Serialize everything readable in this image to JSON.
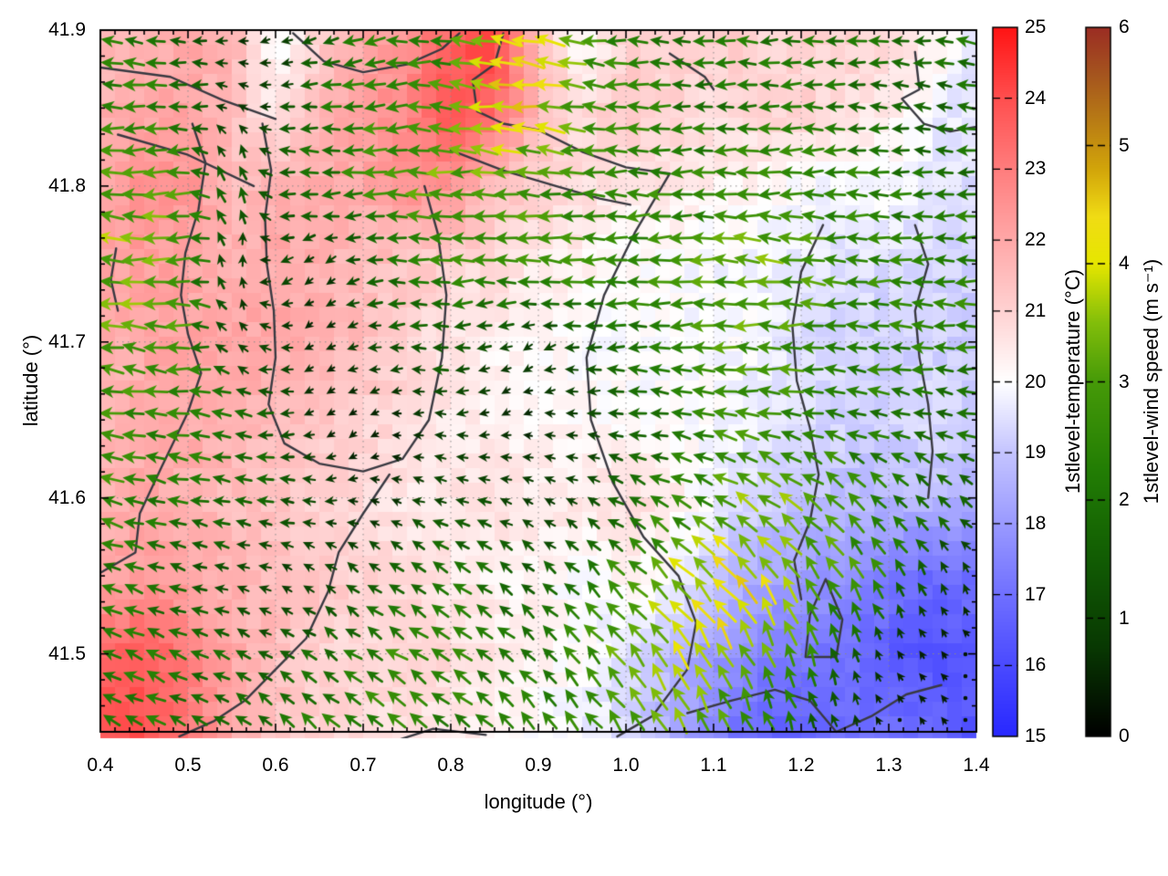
{
  "chart_data": {
    "type": "heatmap",
    "overlays": [
      "quiver",
      "contour"
    ],
    "xlabel": "longitude (°)",
    "ylabel": "latitude (°)",
    "xlim": [
      0.4,
      1.4
    ],
    "ylim": [
      41.45,
      41.9
    ],
    "x_tick_values": [
      0.4,
      0.5,
      0.6,
      0.7,
      0.8,
      0.9,
      1.0,
      1.1,
      1.2,
      1.3,
      1.4
    ],
    "x_tick_labels": [
      "0.4",
      "0.5",
      "0.6",
      "0.7",
      "0.8",
      "0.9",
      "1.0",
      "1.1",
      "1.2",
      "1.3",
      "1.4"
    ],
    "y_tick_values": [
      41.5,
      41.6,
      41.7,
      41.8,
      41.9
    ],
    "y_tick_labels": [
      "41.5",
      "41.6",
      "41.7",
      "41.8",
      "41.9"
    ],
    "minor_ticks_per_major": 6,
    "grid": "dotted-at-major-ticks",
    "field_grid": {
      "lon_start": 0.4,
      "lon_step": 0.05,
      "ncols": 21,
      "lat_start": 41.9,
      "lat_step": -0.05,
      "nrows": 10
    },
    "temperature_c": [
      [
        21.5,
        21.5,
        22.0,
        21.8,
        19.8,
        21.0,
        22.0,
        22.5,
        23.5,
        24.5,
        21.5,
        19.8,
        21.0,
        21.0,
        21.2,
        21.0,
        21.0,
        21.0,
        21.0,
        20.5,
        19.5
      ],
      [
        21.8,
        22.0,
        22.0,
        21.5,
        20.5,
        21.5,
        22.3,
        22.8,
        24.0,
        23.5,
        21.5,
        20.8,
        21.3,
        21.0,
        20.8,
        21.0,
        21.0,
        20.8,
        20.5,
        19.8,
        19.5
      ],
      [
        22.0,
        22.5,
        22.5,
        21.5,
        21.8,
        22.0,
        22.0,
        22.5,
        22.5,
        21.5,
        21.0,
        20.8,
        20.5,
        20.5,
        20.3,
        20.2,
        20.0,
        19.8,
        20.0,
        19.6,
        19.4
      ],
      [
        22.0,
        22.3,
        22.0,
        21.8,
        22.0,
        21.8,
        21.5,
        21.3,
        21.0,
        20.8,
        20.5,
        20.3,
        20.0,
        20.0,
        19.9,
        19.8,
        19.6,
        19.5,
        19.4,
        19.3,
        19.2
      ],
      [
        21.8,
        22.0,
        22.2,
        22.0,
        22.0,
        21.8,
        21.5,
        21.0,
        20.5,
        20.3,
        20.2,
        20.0,
        20.0,
        19.9,
        20.0,
        19.8,
        19.5,
        19.3,
        19.2,
        19.3,
        19.0
      ],
      [
        21.5,
        21.8,
        22.0,
        21.8,
        21.5,
        21.3,
        21.0,
        20.8,
        20.5,
        20.3,
        20.2,
        20.1,
        20.0,
        20.0,
        19.9,
        19.7,
        19.5,
        19.3,
        19.2,
        19.4,
        19.2
      ],
      [
        21.8,
        22.0,
        21.8,
        21.5,
        21.3,
        21.0,
        20.8,
        20.5,
        20.5,
        20.8,
        20.5,
        20.5,
        20.8,
        20.5,
        19.8,
        19.3,
        19.0,
        18.8,
        18.7,
        18.8,
        18.5
      ],
      [
        22.0,
        22.3,
        22.0,
        21.8,
        21.5,
        21.3,
        21.0,
        20.8,
        20.5,
        20.3,
        20.2,
        20.0,
        20.2,
        20.0,
        19.0,
        18.3,
        18.0,
        17.8,
        17.2,
        16.8,
        17.0
      ],
      [
        23.5,
        23.8,
        23.0,
        22.0,
        21.5,
        21.0,
        20.8,
        21.0,
        20.8,
        20.5,
        20.3,
        20.0,
        19.5,
        18.8,
        18.0,
        17.5,
        17.2,
        17.0,
        16.5,
        16.2,
        16.5
      ],
      [
        24.0,
        24.0,
        23.2,
        22.0,
        21.3,
        21.0,
        20.8,
        20.5,
        20.5,
        20.3,
        20.0,
        19.8,
        19.3,
        18.5,
        17.5,
        16.8,
        16.5,
        17.0,
        17.0,
        16.8,
        16.2
      ]
    ],
    "wind_u_ms": [
      [
        -2.2,
        -2.0,
        -1.5,
        -0.8,
        -0.5,
        -1.5,
        -2.0,
        -2.2,
        -2.5,
        -3.8,
        -4.0,
        -3.0,
        -2.2,
        -2.0,
        -2.0,
        -2.2,
        -2.0,
        -2.0,
        -2.0,
        -2.0,
        -2.0
      ],
      [
        -2.5,
        -2.5,
        -2.0,
        -0.5,
        -1.0,
        -2.0,
        -2.5,
        -2.8,
        -3.0,
        -4.2,
        -4.0,
        -2.8,
        -2.5,
        -2.2,
        -2.0,
        -2.0,
        -2.2,
        -2.0,
        -1.8,
        -1.5,
        -1.8
      ],
      [
        -3.0,
        -3.2,
        -3.0,
        0.0,
        -1.5,
        -2.0,
        -2.5,
        -3.0,
        -3.2,
        -3.0,
        -2.8,
        -2.5,
        -2.5,
        -2.5,
        -2.5,
        -2.8,
        -2.5,
        -2.5,
        -2.2,
        -2.0,
        -2.0
      ],
      [
        -3.5,
        -3.3,
        -3.0,
        0.3,
        -1.0,
        -0.5,
        -1.5,
        -2.0,
        -2.5,
        -2.8,
        -3.0,
        -2.8,
        -2.5,
        -2.8,
        -3.0,
        -3.2,
        -3.0,
        -2.8,
        -2.5,
        -2.2,
        -2.5
      ],
      [
        -3.0,
        -3.0,
        -2.8,
        -0.5,
        -1.0,
        -0.3,
        -1.0,
        -1.5,
        -1.8,
        -1.0,
        -0.8,
        -1.5,
        -2.0,
        -2.5,
        -2.8,
        -3.0,
        -2.8,
        -2.5,
        -2.5,
        -2.2,
        -2.5
      ],
      [
        -2.8,
        -2.5,
        -2.5,
        -2.0,
        -1.5,
        -0.5,
        -0.3,
        -0.5,
        -1.0,
        -0.5,
        -0.5,
        -1.0,
        -1.5,
        -2.0,
        -2.5,
        -2.8,
        -2.5,
        -2.2,
        -2.0,
        -1.8,
        -2.0
      ],
      [
        -2.5,
        -2.2,
        -2.0,
        -1.8,
        -1.5,
        -1.0,
        -0.5,
        -0.8,
        -1.2,
        -1.0,
        -0.8,
        -1.0,
        -1.5,
        -2.0,
        -2.5,
        -2.8,
        -2.5,
        -2.0,
        -1.8,
        -1.5,
        -1.5
      ],
      [
        -2.0,
        -1.8,
        -1.5,
        -1.0,
        -0.8,
        -0.8,
        -1.0,
        -1.5,
        -1.8,
        -1.5,
        -1.2,
        -1.5,
        -2.0,
        -2.5,
        -2.8,
        -2.5,
        -2.0,
        -1.5,
        -1.0,
        -0.5,
        -0.3
      ],
      [
        -2.2,
        -2.0,
        -1.8,
        -1.5,
        -1.2,
        -1.5,
        -1.8,
        -2.2,
        -2.0,
        -1.8,
        -1.5,
        -1.8,
        -2.0,
        -2.2,
        -2.0,
        -1.5,
        -1.0,
        -0.5,
        -0.3,
        -0.2,
        -0.2
      ],
      [
        -2.0,
        -2.0,
        -1.8,
        -1.5,
        -1.5,
        -1.8,
        -2.0,
        -2.0,
        -1.8,
        -1.5,
        -1.5,
        -1.8,
        -1.8,
        -1.5,
        -1.2,
        -0.8,
        -0.5,
        -0.3,
        -0.2,
        -0.2,
        -0.2
      ]
    ],
    "wind_v_ms": [
      [
        0,
        0.3,
        0,
        0,
        -0.3,
        -0.5,
        -0.5,
        0,
        0,
        0.5,
        0.8,
        0.5,
        0,
        0,
        0,
        0,
        0,
        0,
        0,
        0.3,
        0.5
      ],
      [
        0,
        0,
        0,
        0.5,
        0,
        0,
        -0.3,
        0,
        0.5,
        0.5,
        0.5,
        0.3,
        0,
        0,
        0,
        0,
        0,
        0,
        0,
        0.3,
        0.5
      ],
      [
        0.3,
        0,
        0,
        1.8,
        0.3,
        0,
        0,
        0,
        0,
        0.3,
        0.3,
        0,
        0,
        0,
        0,
        0,
        0,
        0,
        0,
        0,
        0
      ],
      [
        0.3,
        0,
        0,
        1.5,
        -0.5,
        -0.5,
        -0.3,
        0,
        0,
        0,
        0.3,
        0,
        0,
        0,
        0,
        0.3,
        0.3,
        0,
        0,
        0,
        0
      ],
      [
        0.5,
        0.3,
        0,
        0.8,
        0,
        -0.3,
        -0.3,
        0,
        0,
        -0.3,
        -0.5,
        0,
        0,
        0,
        0,
        0,
        0,
        0,
        0.3,
        0,
        0
      ],
      [
        0.5,
        0.5,
        0.3,
        0.3,
        0,
        -0.3,
        -0.3,
        0,
        0,
        -0.3,
        0,
        0,
        0.3,
        0.3,
        0.3,
        0.5,
        0.5,
        0.5,
        0.5,
        0.5,
        0.3
      ],
      [
        0.8,
        0.5,
        0.5,
        0.3,
        0.3,
        0,
        0,
        0.3,
        0.3,
        0.3,
        0.3,
        0.5,
        0.8,
        1.0,
        1.5,
        2.0,
        2.0,
        1.8,
        1.5,
        1.2,
        1.0
      ],
      [
        0.8,
        0.5,
        0.5,
        0.3,
        0.3,
        0.5,
        0.8,
        1.0,
        1.2,
        1.0,
        1.0,
        1.5,
        2.0,
        2.5,
        3.0,
        3.2,
        3.0,
        2.5,
        2.0,
        1.0,
        0.5
      ],
      [
        1.0,
        0.8,
        0.8,
        0.8,
        0.8,
        1.0,
        1.2,
        1.5,
        1.5,
        1.3,
        1.5,
        2.0,
        2.5,
        3.0,
        3.5,
        3.0,
        2.5,
        1.5,
        0.5,
        0.3,
        0.2
      ],
      [
        1.0,
        1.0,
        1.0,
        1.0,
        1.2,
        1.5,
        1.5,
        1.5,
        1.5,
        1.5,
        1.8,
        2.2,
        2.5,
        2.8,
        2.5,
        2.0,
        1.5,
        0.8,
        0.3,
        0.3,
        0.2
      ]
    ],
    "colorbars": [
      {
        "id": "temperature",
        "label": "1stlevel-temperature (°C)",
        "range": [
          15,
          25
        ],
        "tick_values": [
          15,
          16,
          17,
          18,
          19,
          20,
          21,
          22,
          23,
          24,
          25
        ],
        "tick_labels": [
          "15",
          "16",
          "17",
          "18",
          "19",
          "20",
          "21",
          "22",
          "23",
          "24",
          "25"
        ],
        "stops": [
          [
            15,
            "#2828ff"
          ],
          [
            16,
            "#4a4aff"
          ],
          [
            17,
            "#7070ff"
          ],
          [
            18,
            "#9a9aff"
          ],
          [
            19,
            "#c4c4ff"
          ],
          [
            20,
            "#ffffff"
          ],
          [
            21,
            "#ffd2d2"
          ],
          [
            22,
            "#ffa8a8"
          ],
          [
            23,
            "#ff7d7d"
          ],
          [
            24,
            "#ff4f4f"
          ],
          [
            25,
            "#ff1414"
          ]
        ]
      },
      {
        "id": "wind-speed",
        "label": "1stlevel-wind speed (m s⁻¹)",
        "range": [
          0,
          6
        ],
        "tick_values": [
          0,
          1,
          2,
          3,
          4,
          5,
          6
        ],
        "tick_labels": [
          "0",
          "1",
          "2",
          "3",
          "4",
          "5",
          "6"
        ],
        "stops": [
          [
            0,
            "#000000"
          ],
          [
            0.75,
            "#083802"
          ],
          [
            1.5,
            "#115c03"
          ],
          [
            2.25,
            "#227d04"
          ],
          [
            3,
            "#469a08"
          ],
          [
            3.5,
            "#82be0a"
          ],
          [
            4,
            "#e6e600"
          ],
          [
            4.4,
            "#f0dc14"
          ],
          [
            4.8,
            "#d2a50a"
          ],
          [
            5.2,
            "#b97d14"
          ],
          [
            5.6,
            "#a5551e"
          ],
          [
            6,
            "#9b2d23"
          ]
        ]
      }
    ],
    "contour_color": "#3a3a42",
    "contours_lonlat": [
      [
        [
          0.4,
          41.876
        ],
        [
          0.48,
          41.87
        ],
        [
          0.54,
          41.855
        ],
        [
          0.6,
          41.843
        ]
      ],
      [
        [
          0.42,
          41.833
        ],
        [
          0.5,
          41.82
        ],
        [
          0.575,
          41.8
        ]
      ],
      [
        [
          0.62,
          41.898
        ],
        [
          0.655,
          41.88
        ],
        [
          0.7,
          41.873
        ],
        [
          0.75,
          41.878
        ],
        [
          0.79,
          41.888
        ],
        [
          0.81,
          41.898
        ]
      ],
      [
        [
          0.86,
          41.898
        ],
        [
          0.85,
          41.878
        ],
        [
          0.825,
          41.868
        ],
        [
          0.83,
          41.848
        ],
        [
          0.86,
          41.84
        ],
        [
          0.9,
          41.836
        ],
        [
          0.95,
          41.822
        ],
        [
          1.0,
          41.812
        ],
        [
          1.05,
          41.808
        ],
        [
          1.01,
          41.77
        ],
        [
          0.975,
          41.73
        ],
        [
          0.955,
          41.69
        ],
        [
          0.96,
          41.65
        ],
        [
          0.985,
          41.61
        ],
        [
          1.02,
          41.575
        ],
        [
          1.06,
          41.55
        ],
        [
          1.08,
          41.52
        ],
        [
          1.07,
          41.49
        ],
        [
          1.03,
          41.46
        ],
        [
          0.99,
          41.447
        ]
      ],
      [
        [
          0.8,
          41.823
        ],
        [
          0.86,
          41.81
        ],
        [
          0.92,
          41.8
        ],
        [
          0.97,
          41.792
        ],
        [
          1.005,
          41.788
        ]
      ],
      [
        [
          0.505,
          41.84
        ],
        [
          0.52,
          41.815
        ],
        [
          0.512,
          41.785
        ],
        [
          0.497,
          41.757
        ],
        [
          0.492,
          41.73
        ],
        [
          0.5,
          41.705
        ],
        [
          0.515,
          41.68
        ],
        [
          0.5,
          41.655
        ],
        [
          0.47,
          41.62
        ],
        [
          0.445,
          41.59
        ],
        [
          0.44,
          41.565
        ],
        [
          0.4,
          41.552
        ]
      ],
      [
        [
          0.585,
          41.84
        ],
        [
          0.595,
          41.81
        ],
        [
          0.588,
          41.78
        ],
        [
          0.59,
          41.75
        ],
        [
          0.598,
          41.72
        ],
        [
          0.6,
          41.69
        ],
        [
          0.592,
          41.66
        ],
        [
          0.61,
          41.635
        ],
        [
          0.65,
          41.622
        ],
        [
          0.7,
          41.617
        ],
        [
          0.745,
          41.625
        ],
        [
          0.775,
          41.65
        ],
        [
          0.79,
          41.69
        ],
        [
          0.795,
          41.73
        ],
        [
          0.785,
          41.77
        ],
        [
          0.77,
          41.8
        ]
      ],
      [
        [
          0.73,
          41.615
        ],
        [
          0.7,
          41.59
        ],
        [
          0.672,
          41.565
        ],
        [
          0.66,
          41.54
        ],
        [
          0.635,
          41.51
        ],
        [
          0.6,
          41.49
        ],
        [
          0.565,
          41.47
        ],
        [
          0.53,
          41.457
        ],
        [
          0.49,
          41.447
        ]
      ],
      [
        [
          1.225,
          41.775
        ],
        [
          1.2,
          41.745
        ],
        [
          1.19,
          41.71
        ],
        [
          1.195,
          41.675
        ],
        [
          1.21,
          41.645
        ],
        [
          1.22,
          41.615
        ],
        [
          1.21,
          41.585
        ],
        [
          1.192,
          41.56
        ],
        [
          1.2,
          41.535
        ]
      ],
      [
        [
          1.205,
          41.498
        ],
        [
          1.24,
          41.498
        ],
        [
          1.247,
          41.522
        ],
        [
          1.228,
          41.548
        ],
        [
          1.21,
          41.525
        ],
        [
          1.205,
          41.498
        ]
      ],
      [
        [
          1.33,
          41.775
        ],
        [
          1.345,
          41.75
        ],
        [
          1.33,
          41.72
        ],
        [
          1.335,
          41.69
        ],
        [
          1.345,
          41.66
        ],
        [
          1.35,
          41.63
        ],
        [
          1.345,
          41.6
        ]
      ],
      [
        [
          1.33,
          41.886
        ],
        [
          1.335,
          41.862
        ],
        [
          1.315,
          41.856
        ],
        [
          1.34,
          41.84
        ],
        [
          1.37,
          41.835
        ],
        [
          1.4,
          41.838
        ]
      ],
      [
        [
          1.05,
          41.885
        ],
        [
          1.09,
          41.87
        ],
        [
          1.1,
          41.862
        ]
      ],
      [
        [
          1.07,
          41.462
        ],
        [
          1.12,
          41.47
        ],
        [
          1.17,
          41.477
        ],
        [
          1.21,
          41.47
        ],
        [
          1.24,
          41.45
        ],
        [
          1.28,
          41.46
        ],
        [
          1.32,
          41.474
        ],
        [
          1.36,
          41.48
        ]
      ],
      [
        [
          0.73,
          41.443
        ],
        [
          0.78,
          41.452
        ],
        [
          0.84,
          41.448
        ]
      ],
      [
        [
          0.418,
          41.76
        ],
        [
          0.412,
          41.74
        ],
        [
          0.42,
          41.72
        ]
      ]
    ]
  }
}
